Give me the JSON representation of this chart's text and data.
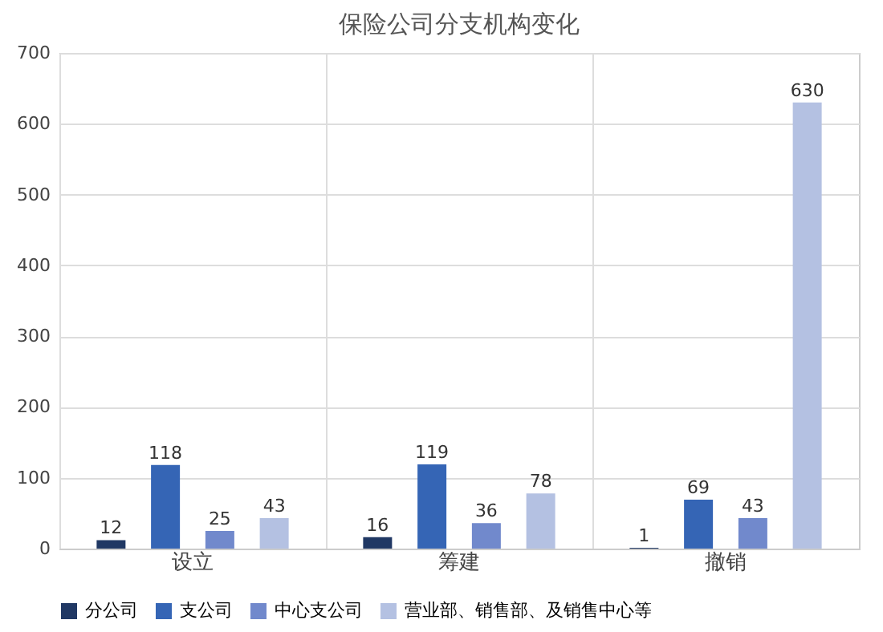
{
  "chart_data": {
    "type": "bar",
    "title": "保险公司分支机构变化",
    "categories": [
      "设立",
      "筹建",
      "撤销"
    ],
    "series": [
      {
        "name": "分公司",
        "color": "#203864",
        "values": [
          12,
          16,
          1
        ]
      },
      {
        "name": "支公司",
        "color": "#3565b5",
        "values": [
          118,
          119,
          69
        ]
      },
      {
        "name": "中心支公司",
        "color": "#7189cc",
        "values": [
          25,
          36,
          43
        ]
      },
      {
        "name": "营业部、销售部、及销售中心等",
        "color": "#b4c1e2",
        "values": [
          43,
          78,
          630
        ]
      }
    ],
    "ylim": [
      0,
      700
    ],
    "yticks": [
      0,
      100,
      200,
      300,
      400,
      500,
      600,
      700
    ],
    "grid": true,
    "legend": "bottom",
    "data_labels": true
  }
}
